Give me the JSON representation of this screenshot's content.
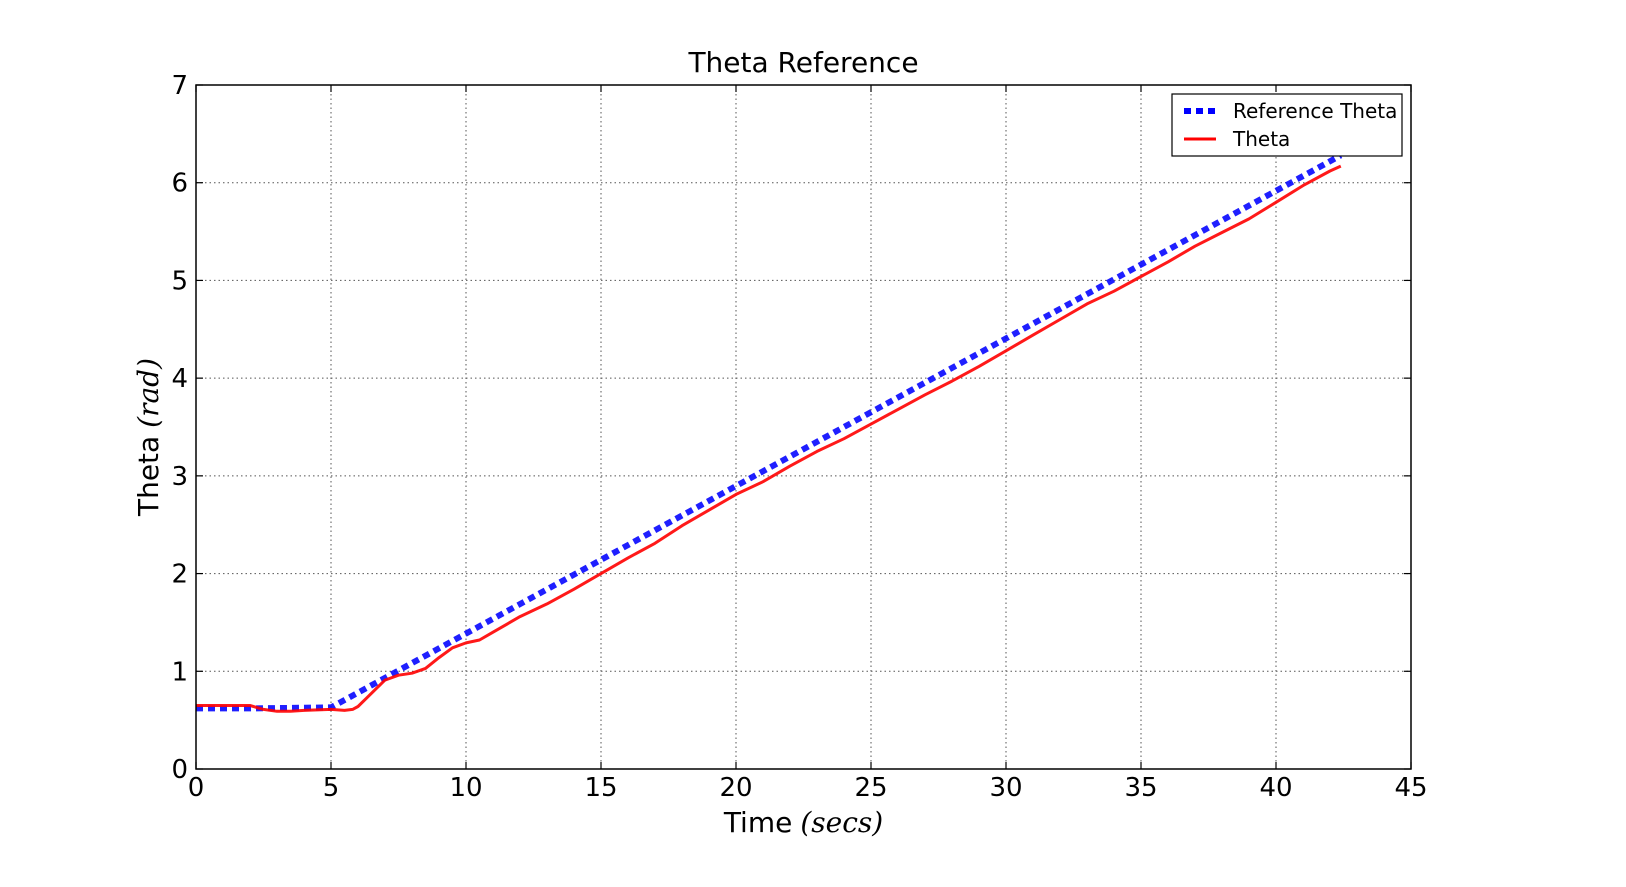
{
  "chart_data": {
    "type": "line",
    "title": "Theta Reference",
    "xlabel": "Time",
    "xlabel_unit": "(secs)",
    "ylabel": "Theta",
    "ylabel_unit": "(rad)",
    "xlim": [
      0,
      45
    ],
    "ylim": [
      0,
      7
    ],
    "xticks": [
      0,
      5,
      10,
      15,
      20,
      25,
      30,
      35,
      40,
      45
    ],
    "yticks": [
      0,
      1,
      2,
      3,
      4,
      5,
      6,
      7
    ],
    "grid": true,
    "legend_position": "top-right",
    "series": [
      {
        "name": "Reference Theta",
        "color": "#0000ff",
        "style": "dotted",
        "x": [
          0,
          2,
          5,
          42.4
        ],
        "y": [
          0.62,
          0.62,
          0.63,
          6.28
        ]
      },
      {
        "name": "Theta",
        "color": "#ff0000",
        "style": "solid",
        "x": [
          0,
          1,
          2,
          2.5,
          3,
          3.5,
          4,
          5,
          5.5,
          5.8,
          6,
          6.3,
          6.7,
          7,
          7.5,
          8,
          8.5,
          9,
          9.5,
          10,
          10.5,
          11,
          12,
          13,
          14,
          15,
          16,
          17,
          18,
          19,
          20,
          21,
          22,
          23,
          24,
          25,
          26,
          27,
          28,
          29,
          30,
          31,
          32,
          33,
          34,
          35,
          36,
          37,
          38,
          39,
          40,
          41,
          42,
          42.4
        ],
        "y": [
          0.65,
          0.65,
          0.65,
          0.61,
          0.59,
          0.59,
          0.6,
          0.61,
          0.6,
          0.61,
          0.64,
          0.72,
          0.83,
          0.91,
          0.96,
          0.98,
          1.03,
          1.14,
          1.24,
          1.29,
          1.32,
          1.4,
          1.56,
          1.69,
          1.84,
          2.0,
          2.16,
          2.31,
          2.49,
          2.65,
          2.81,
          2.94,
          3.1,
          3.25,
          3.38,
          3.53,
          3.68,
          3.83,
          3.97,
          4.12,
          4.28,
          4.44,
          4.6,
          4.76,
          4.89,
          5.04,
          5.19,
          5.35,
          5.49,
          5.63,
          5.8,
          5.97,
          6.12,
          6.17
        ]
      }
    ]
  }
}
